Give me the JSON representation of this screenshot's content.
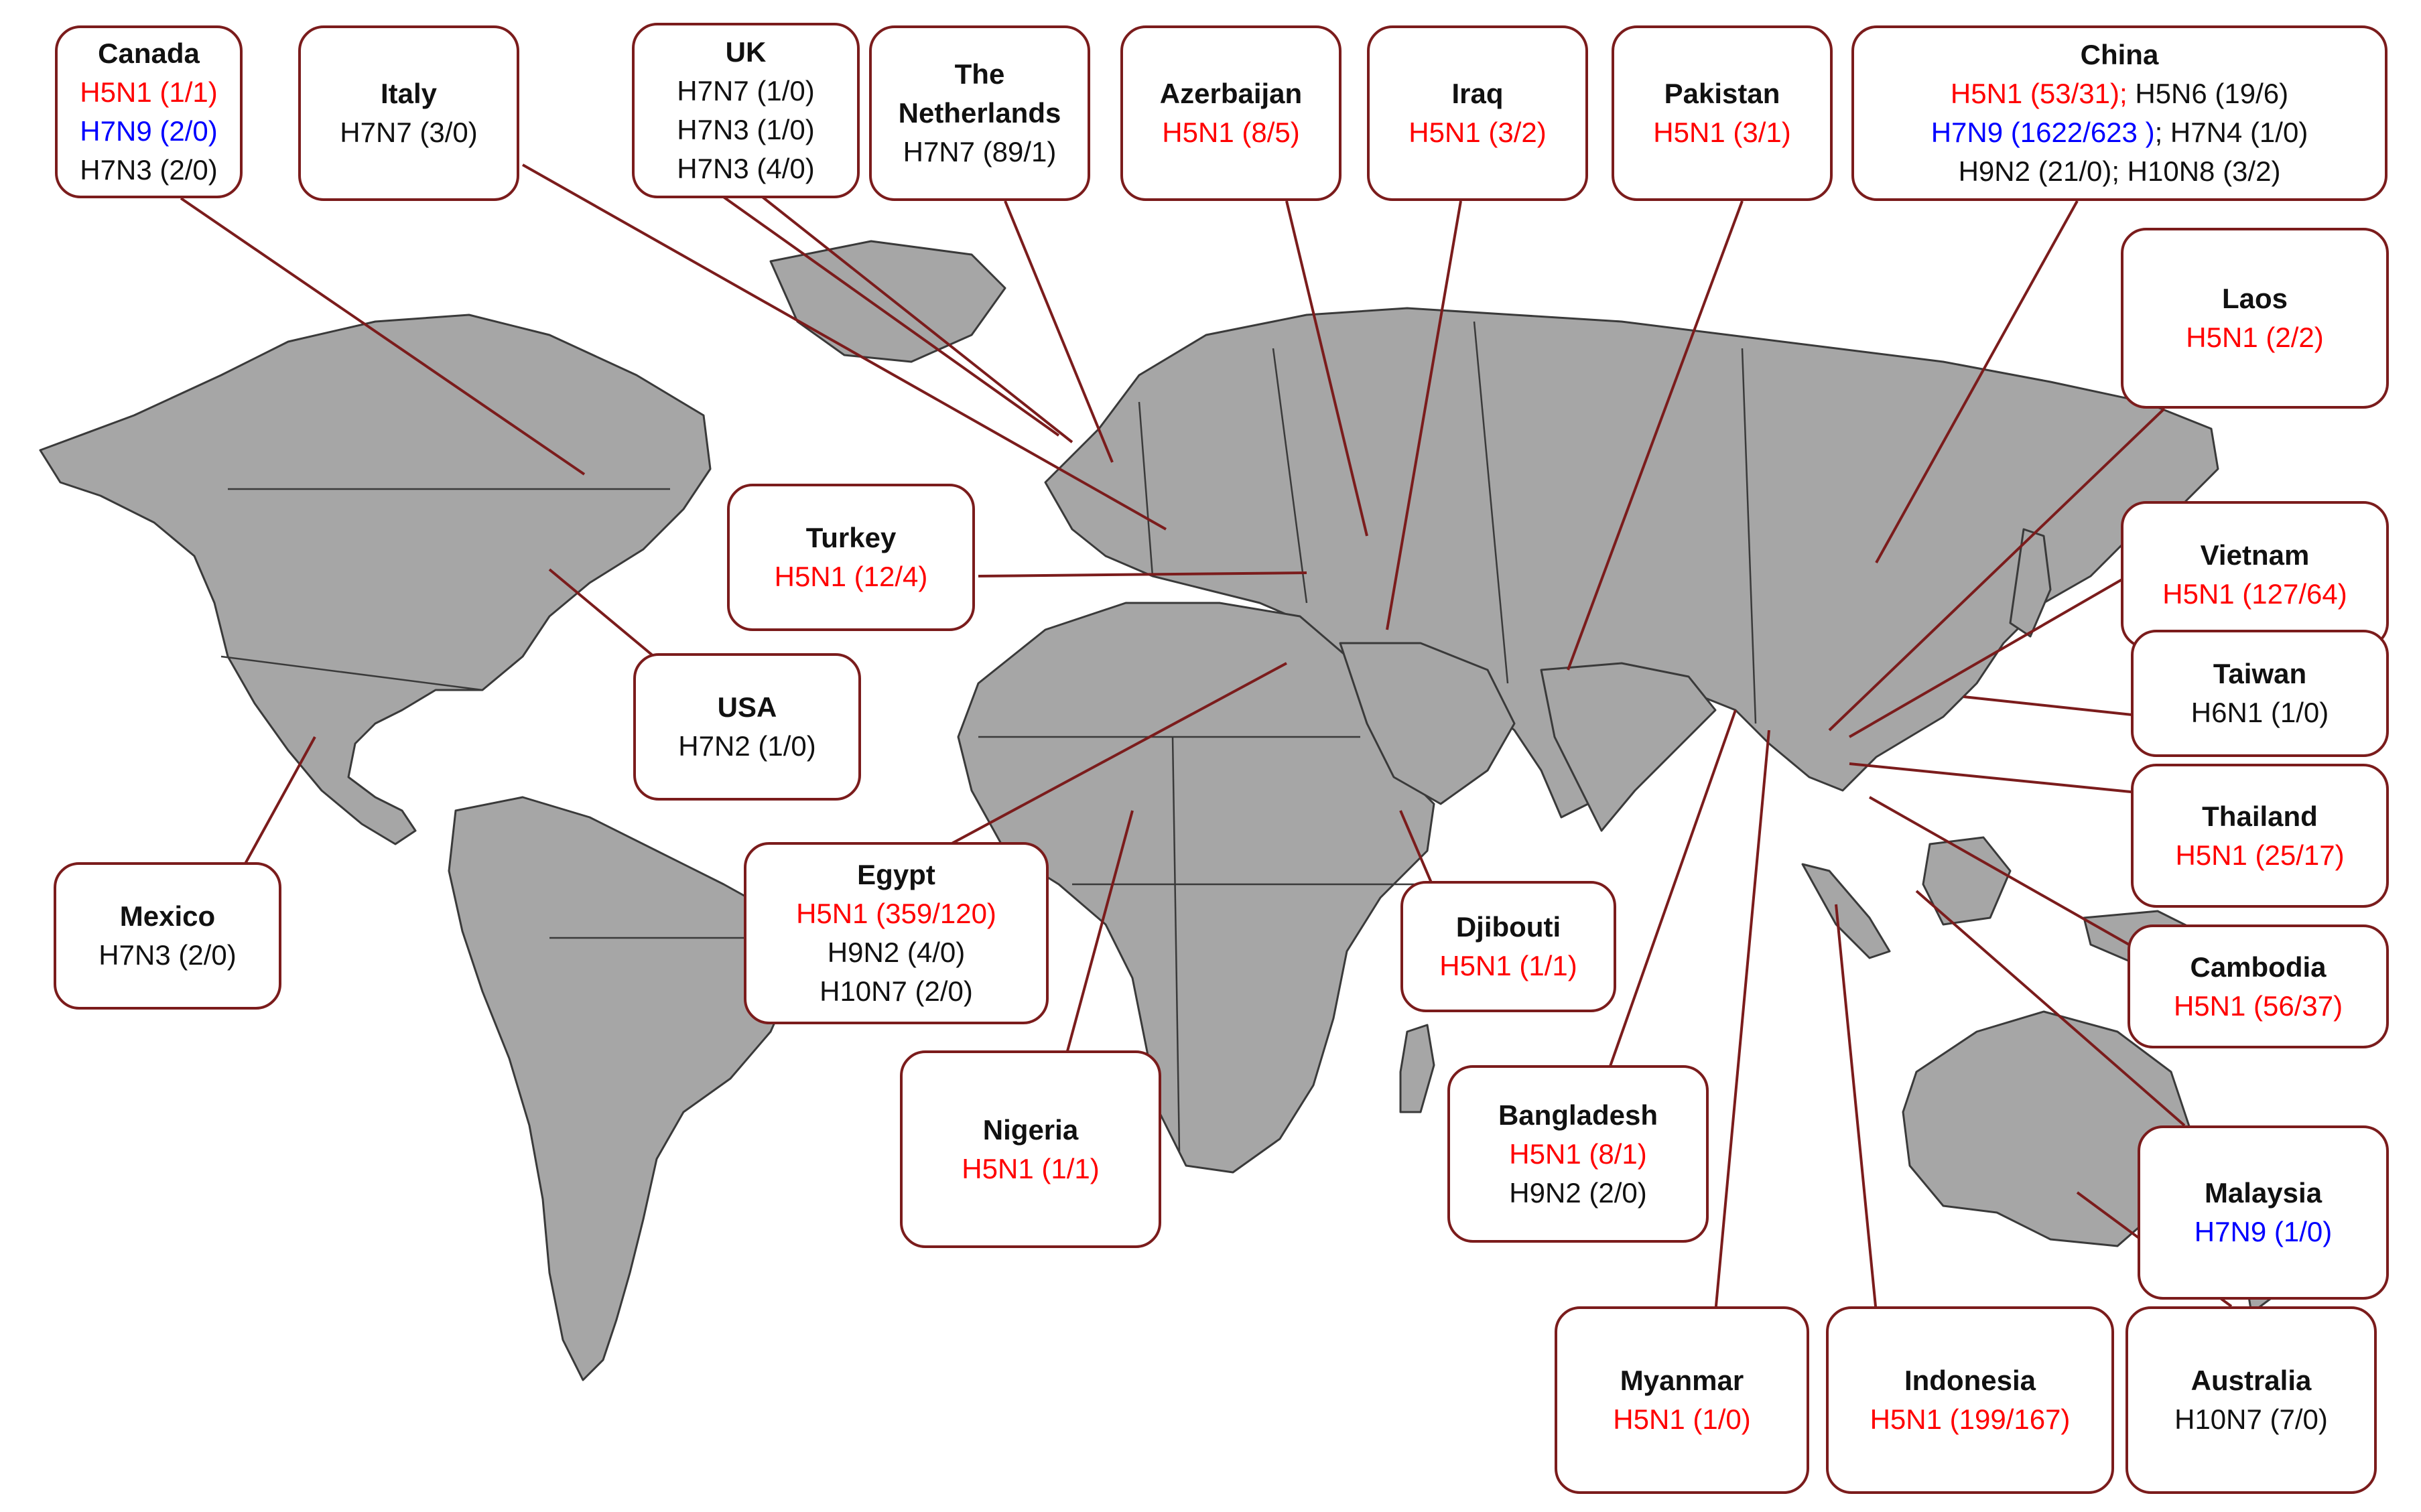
{
  "colors": {
    "land": "#a6a6a6",
    "border": "#3a3a3a",
    "leader": "#7b1c1c",
    "subtype_red": "#ff0000",
    "subtype_blue": "#0000ff",
    "subtype_black": "#111111"
  },
  "callouts": [
    {
      "id": "canada",
      "country": "Canada",
      "rows": [
        [
          {
            "text": "H5N1 (1/1)",
            "color": "red"
          }
        ],
        [
          {
            "text": "H7N9 (2/0)",
            "color": "blue"
          }
        ],
        [
          {
            "text": "H7N3 (2/0)",
            "color": "black"
          }
        ]
      ]
    },
    {
      "id": "italy",
      "country": "Italy",
      "rows": [
        [
          {
            "text": "H7N7 (3/0)",
            "color": "black"
          }
        ]
      ]
    },
    {
      "id": "uk",
      "country": "UK",
      "rows": [
        [
          {
            "text": "H7N7 (1/0)",
            "color": "black"
          }
        ],
        [
          {
            "text": "H7N3 (1/0)",
            "color": "black"
          }
        ],
        [
          {
            "text": "H7N3 (4/0)",
            "color": "black"
          }
        ]
      ]
    },
    {
      "id": "netherlands",
      "country": "The Netherlands",
      "rows": [
        [
          {
            "text": "H7N7 (89/1)",
            "color": "black"
          }
        ]
      ]
    },
    {
      "id": "azerbaijan",
      "country": "Azerbaijan",
      "rows": [
        [
          {
            "text": "H5N1 (8/5)",
            "color": "red"
          }
        ]
      ]
    },
    {
      "id": "iraq",
      "country": "Iraq",
      "rows": [
        [
          {
            "text": "H5N1 (3/2)",
            "color": "red"
          }
        ]
      ]
    },
    {
      "id": "pakistan",
      "country": "Pakistan",
      "rows": [
        [
          {
            "text": "H5N1 (3/1)",
            "color": "red"
          }
        ]
      ]
    },
    {
      "id": "china",
      "country": "China",
      "rows": [
        [
          {
            "text": "H5N1 (53/31);",
            "color": "red"
          },
          {
            "text": " H5N6 (19/6)",
            "color": "black"
          }
        ],
        [
          {
            "text": "H7N9 (1622/623 )",
            "color": "blue"
          },
          {
            "text": "; H7N4 (1/0)",
            "color": "black"
          }
        ],
        [
          {
            "text": "H9N2 (21/0); H10N8 (3/2)",
            "color": "black"
          }
        ]
      ]
    },
    {
      "id": "laos",
      "country": "Laos",
      "rows": [
        [
          {
            "text": "H5N1 (2/2)",
            "color": "red"
          }
        ]
      ]
    },
    {
      "id": "turkey",
      "country": "Turkey",
      "rows": [
        [
          {
            "text": "H5N1 (12/4)",
            "color": "red"
          }
        ]
      ]
    },
    {
      "id": "usa",
      "country": "USA",
      "rows": [
        [
          {
            "text": "H7N2 (1/0)",
            "color": "black"
          }
        ]
      ]
    },
    {
      "id": "vietnam",
      "country": "Vietnam",
      "rows": [
        [
          {
            "text": "H5N1 (127/64)",
            "color": "red"
          }
        ]
      ]
    },
    {
      "id": "taiwan",
      "country": "Taiwan",
      "rows": [
        [
          {
            "text": "H6N1 (1/0)",
            "color": "black"
          }
        ]
      ]
    },
    {
      "id": "thailand",
      "country": "Thailand",
      "rows": [
        [
          {
            "text": "H5N1 (25/17)",
            "color": "red"
          }
        ]
      ]
    },
    {
      "id": "mexico",
      "country": "Mexico",
      "rows": [
        [
          {
            "text": "H7N3 (2/0)",
            "color": "black"
          }
        ]
      ]
    },
    {
      "id": "egypt",
      "country": "Egypt",
      "rows": [
        [
          {
            "text": "H5N1 (359/120)",
            "color": "red"
          }
        ],
        [
          {
            "text": "H9N2 (4/0)",
            "color": "black"
          }
        ],
        [
          {
            "text": "H10N7 (2/0)",
            "color": "black"
          }
        ]
      ]
    },
    {
      "id": "djibouti",
      "country": "Djibouti",
      "rows": [
        [
          {
            "text": "H5N1 (1/1)",
            "color": "red"
          }
        ]
      ]
    },
    {
      "id": "cambodia",
      "country": "Cambodia",
      "rows": [
        [
          {
            "text": "H5N1 (56/37)",
            "color": "red"
          }
        ]
      ]
    },
    {
      "id": "nigeria",
      "country": "Nigeria",
      "rows": [
        [
          {
            "text": "H5N1 (1/1)",
            "color": "red"
          }
        ]
      ]
    },
    {
      "id": "bangladesh",
      "country": "Bangladesh",
      "rows": [
        [
          {
            "text": "H5N1 (8/1)",
            "color": "red"
          }
        ],
        [
          {
            "text": "H9N2 (2/0)",
            "color": "black"
          }
        ]
      ]
    },
    {
      "id": "malaysia",
      "country": "Malaysia",
      "rows": [
        [
          {
            "text": "H7N9 (1/0)",
            "color": "blue"
          }
        ]
      ]
    },
    {
      "id": "myanmar",
      "country": "Myanmar",
      "rows": [
        [
          {
            "text": "H5N1 (1/0)",
            "color": "red"
          }
        ]
      ]
    },
    {
      "id": "indonesia",
      "country": "Indonesia",
      "rows": [
        [
          {
            "text": "H5N1 (199/167)",
            "color": "red"
          }
        ]
      ]
    },
    {
      "id": "australia",
      "country": "Australia",
      "rows": [
        [
          {
            "text": "H10N7 (7/0)",
            "color": "black"
          }
        ]
      ]
    }
  ]
}
